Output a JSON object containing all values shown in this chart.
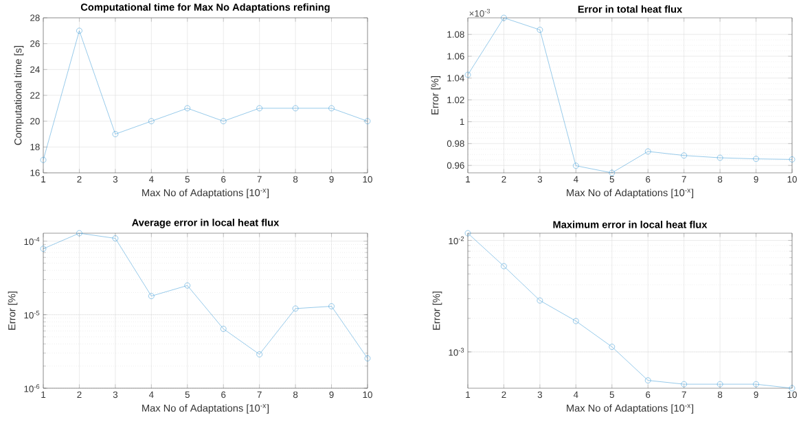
{
  "chart_data": [
    {
      "type": "line",
      "title": "Computational time for Max No Adaptations refining",
      "xlabel": "Max No of Adaptations [10$^{-x}$]",
      "ylabel": "Computational time [s]",
      "x": [
        1,
        2,
        3,
        4,
        5,
        6,
        7,
        8,
        9,
        10
      ],
      "values": [
        17,
        27,
        19,
        20,
        21,
        20,
        21,
        21,
        21,
        20
      ],
      "color": "#3b9ad8",
      "xlim": [
        1,
        10
      ],
      "ylim": [
        16,
        28
      ],
      "xticks": [
        1,
        2,
        3,
        4,
        5,
        6,
        7,
        8,
        9,
        10
      ],
      "yticks": [
        16,
        18,
        20,
        22,
        24,
        26,
        28
      ],
      "grid": true,
      "marker": "circle",
      "line_style": "solid"
    },
    {
      "type": "line",
      "title": "Error in total heat flux",
      "xlabel": "Max No of Adaptations [10$^{-x}$]",
      "ylabel": "Error [%]",
      "annotations": [
        "×10$^{-3}$"
      ],
      "x": [
        1,
        2,
        3,
        4,
        5,
        6,
        7,
        8,
        9,
        10
      ],
      "values": [
        1.043,
        1.0952,
        1.0842,
        0.9597,
        0.9532,
        0.9728,
        0.9691,
        0.967,
        0.966,
        0.9655
      ],
      "color": "#3b9ad8",
      "xlim": [
        1,
        10
      ],
      "ylim": [
        0.9532,
        1.0952
      ],
      "xticks": [
        1,
        2,
        3,
        4,
        5,
        6,
        7,
        8,
        9,
        10
      ],
      "yticks": [
        0.96,
        0.98,
        1,
        1.02,
        1.04,
        1.06,
        1.08
      ],
      "grid": true,
      "marker": "circle",
      "line_style": "solid"
    },
    {
      "type": "line",
      "title": "Average error in local heat flux",
      "xlabel": "Max No of Adaptations [10$^{-x}$]",
      "ylabel": "Error [%]",
      "x": [
        1,
        2,
        3,
        4,
        5,
        6,
        7,
        8,
        9,
        10
      ],
      "values": [
        7.87e-05,
        0.000128,
        0.000109,
        1.79e-05,
        2.49e-05,
        6.41e-06,
        2.89e-06,
        1.21e-05,
        1.3e-05,
        2.55e-06
      ],
      "color": "#3b9ad8",
      "xlim": [
        1,
        10
      ],
      "ylim": [
        1e-06,
        0.000128
      ],
      "xticks": [
        1,
        2,
        3,
        4,
        5,
        6,
        7,
        8,
        9,
        10
      ],
      "yticks": [
        {
          "value": 1e-06,
          "label": "10$^{-6}$"
        },
        {
          "value": 1e-05,
          "label": "10$^{-5}$"
        },
        {
          "value": 0.0001,
          "label": "10$^{-4}$"
        }
      ],
      "log": true,
      "grid": true,
      "marker": "circle",
      "line_style": "solid"
    },
    {
      "type": "line",
      "title": "Maximum error in local heat flux",
      "xlabel": "Max No of Adaptations [10$^{-x}$]",
      "ylabel": "Error [%]",
      "x": [
        1,
        2,
        3,
        4,
        5,
        6,
        7,
        8,
        9,
        10
      ],
      "values": [
        0.0116,
        0.00587,
        0.00289,
        0.00189,
        0.00111,
        0.000555,
        0.000513,
        0.000513,
        0.000513,
        0.000472
      ],
      "color": "#3b9ad8",
      "xlim": [
        1,
        10
      ],
      "ylim": [
        0.000472,
        0.0116
      ],
      "xticks": [
        1,
        2,
        3,
        4,
        5,
        6,
        7,
        8,
        9,
        10
      ],
      "yticks": [
        {
          "value": 0.001,
          "label": "10$^{-3}$"
        },
        {
          "value": 0.01,
          "label": "10$^{-2}$"
        }
      ],
      "log": true,
      "grid": true,
      "marker": "circle",
      "line_style": "solid"
    }
  ]
}
